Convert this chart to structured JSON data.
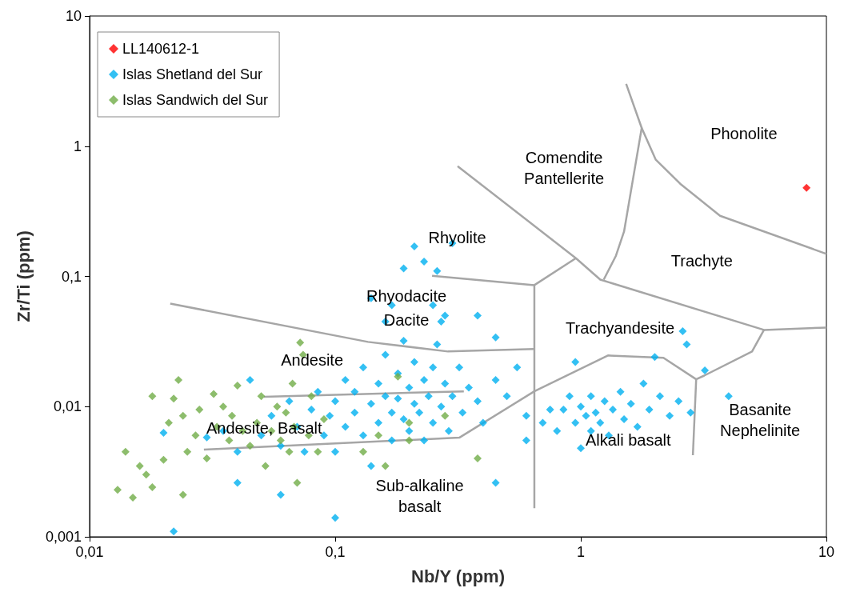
{
  "chart_data": {
    "type": "scatter",
    "xlabel": "Nb/Y (ppm)",
    "ylabel": "Zr/Ti (ppm)",
    "log": "xy",
    "grid": false,
    "legend": "top left",
    "marker": "diamond",
    "xlim": [
      0.01,
      10
    ],
    "xticks": [
      {
        "value": 0.01,
        "label": "0,01"
      },
      {
        "value": 0.1,
        "label": "0,1"
      },
      1,
      10
    ],
    "ylim": [
      0.001,
      10
    ],
    "yticks": [
      {
        "value": 0.001,
        "label": "0,001"
      },
      {
        "value": 0.01,
        "label": "0,01"
      },
      {
        "value": 0.1,
        "label": "0,1"
      },
      1,
      10
    ],
    "series": [
      {
        "type": "line",
        "color": "#a6a6a6",
        "marker": "none",
        "x": [
          0.0213,
          0.136,
          0.288,
          0.647
        ],
        "values": [
          0.0618,
          0.0314,
          0.0265,
          0.0277
        ]
      },
      {
        "type": "line",
        "color": "#a6a6a6",
        "marker": "none",
        "x": [
          0.0513,
          0.334
        ],
        "values": [
          0.0119,
          0.0131
        ]
      },
      {
        "type": "line",
        "color": "#a6a6a6",
        "marker": "none",
        "x": [
          0.0292,
          0.32,
          0.647,
          1.29,
          2.17,
          2.95
        ],
        "values": [
          0.00467,
          0.00577,
          0.0131,
          0.0247,
          0.0237,
          0.0162
        ]
      },
      {
        "type": "line",
        "color": "#a6a6a6",
        "marker": "none",
        "x": [
          0.647,
          0.647,
          0.955
        ],
        "values": [
          0.00166,
          0.0857,
          0.138
        ]
      },
      {
        "type": "line",
        "color": "#a6a6a6",
        "marker": "none",
        "x": [
          0.248,
          0.647
        ],
        "values": [
          0.101,
          0.0857
        ]
      },
      {
        "type": "line",
        "color": "#a6a6a6",
        "marker": "none",
        "x": [
          0.315,
          0.955,
          1.2,
          5.57,
          10
        ],
        "values": [
          0.703,
          0.138,
          0.0945,
          0.0388,
          0.0405
        ]
      },
      {
        "type": "line",
        "color": "#a6a6a6",
        "marker": "none",
        "x": [
          5.57,
          4.98,
          3.18,
          2.95,
          2.86
        ],
        "values": [
          0.0388,
          0.0265,
          0.0173,
          0.0162,
          0.00423
        ]
      },
      {
        "type": "line",
        "color": "#a6a6a6",
        "marker": "none",
        "x": [
          1.24,
          1.39,
          1.5,
          1.77,
          1.53
        ],
        "values": [
          0.0945,
          0.144,
          0.221,
          1.38,
          3.01
        ]
      },
      {
        "type": "line",
        "color": "#a6a6a6",
        "marker": "none",
        "x": [
          1.77,
          2.02,
          2.54,
          3.69,
          10
        ],
        "values": [
          1.38,
          0.787,
          0.515,
          0.292,
          0.149
        ]
      },
      {
        "name": "LL140612-1",
        "color": "#ff0000",
        "x": [
          8.3
        ],
        "values": [
          0.48
        ]
      },
      {
        "name": "Islas Shetland del Sur",
        "color": "#00b0f0",
        "x": [
          0.05,
          0.055,
          0.06,
          0.065,
          0.07,
          0.075,
          0.08,
          0.085,
          0.09,
          0.095,
          0.1,
          0.1,
          0.11,
          0.11,
          0.12,
          0.12,
          0.13,
          0.13,
          0.14,
          0.14,
          0.15,
          0.15,
          0.16,
          0.16,
          0.17,
          0.17,
          0.18,
          0.18,
          0.19,
          0.19,
          0.2,
          0.2,
          0.21,
          0.21,
          0.27,
          0.22,
          0.23,
          0.23,
          0.24,
          0.25,
          0.25,
          0.26,
          0.27,
          0.28,
          0.29,
          0.3,
          0.32,
          0.33,
          0.35,
          0.38,
          0.4,
          0.45,
          0.5,
          0.55,
          0.6,
          0.6,
          0.045,
          0.04,
          0.035,
          0.03,
          0.16,
          0.17,
          0.25,
          0.28,
          0.3,
          0.21,
          0.23,
          0.19,
          0.26,
          0.14,
          0.022,
          0.1,
          0.45,
          0.02,
          0.04,
          0.06,
          0.45,
          0.38,
          0.8,
          0.85,
          0.9,
          0.95,
          0.95,
          1.0,
          1.0,
          1.05,
          1.1,
          1.1,
          1.15,
          1.2,
          1.25,
          1.3,
          1.35,
          1.45,
          1.5,
          1.6,
          1.7,
          1.8,
          1.9,
          2.0,
          2.1,
          2.3,
          2.5,
          2.6,
          2.7,
          2.8,
          3.2,
          4.0,
          0.7,
          0.75
        ],
        "values": [
          0.006,
          0.0085,
          0.005,
          0.011,
          0.007,
          0.0045,
          0.0095,
          0.013,
          0.006,
          0.0085,
          0.011,
          0.0045,
          0.016,
          0.007,
          0.009,
          0.013,
          0.02,
          0.006,
          0.0105,
          0.0035,
          0.015,
          0.0075,
          0.025,
          0.012,
          0.009,
          0.0055,
          0.018,
          0.0115,
          0.032,
          0.008,
          0.014,
          0.0065,
          0.022,
          0.0105,
          0.045,
          0.009,
          0.016,
          0.0055,
          0.012,
          0.02,
          0.0075,
          0.03,
          0.01,
          0.015,
          0.0065,
          0.012,
          0.02,
          0.009,
          0.014,
          0.011,
          0.0075,
          0.016,
          0.012,
          0.02,
          0.0085,
          0.0055,
          0.016,
          0.0045,
          0.0065,
          0.0058,
          0.045,
          0.06,
          0.06,
          0.05,
          0.18,
          0.17,
          0.13,
          0.115,
          0.11,
          0.068,
          0.0011,
          0.0014,
          0.0026,
          0.0063,
          0.0026,
          0.0021,
          0.034,
          0.05,
          0.0065,
          0.0095,
          0.012,
          0.0075,
          0.022,
          0.0048,
          0.01,
          0.0085,
          0.012,
          0.0065,
          0.009,
          0.0075,
          0.011,
          0.006,
          0.0095,
          0.013,
          0.008,
          0.0105,
          0.007,
          0.015,
          0.0095,
          0.024,
          0.012,
          0.0085,
          0.011,
          0.038,
          0.03,
          0.009,
          0.019,
          0.012,
          0.0075,
          0.0095
        ]
      },
      {
        "name": "Islas Sandwich del Sur",
        "color": "#70ad47",
        "x": [
          0.013,
          0.015,
          0.014,
          0.016,
          0.017,
          0.018,
          0.018,
          0.02,
          0.021,
          0.022,
          0.023,
          0.024,
          0.024,
          0.025,
          0.027,
          0.028,
          0.03,
          0.032,
          0.033,
          0.035,
          0.037,
          0.038,
          0.04,
          0.042,
          0.045,
          0.048,
          0.05,
          0.052,
          0.055,
          0.058,
          0.06,
          0.063,
          0.065,
          0.067,
          0.068,
          0.07,
          0.072,
          0.074,
          0.078,
          0.08,
          0.085,
          0.09,
          0.13,
          0.16,
          0.18,
          0.2,
          0.28,
          0.38,
          0.2,
          0.15
        ],
        "values": [
          0.0023,
          0.002,
          0.0045,
          0.0035,
          0.003,
          0.0024,
          0.012,
          0.0039,
          0.0075,
          0.0115,
          0.016,
          0.0021,
          0.0085,
          0.0045,
          0.006,
          0.0095,
          0.004,
          0.0125,
          0.007,
          0.01,
          0.0055,
          0.0085,
          0.0145,
          0.0065,
          0.005,
          0.0075,
          0.012,
          0.0035,
          0.0065,
          0.01,
          0.0055,
          0.009,
          0.0045,
          0.015,
          0.007,
          0.0026,
          0.031,
          0.025,
          0.006,
          0.012,
          0.0045,
          0.008,
          0.0045,
          0.0035,
          0.017,
          0.0055,
          0.0085,
          0.004,
          0.0075,
          0.006
        ]
      }
    ],
    "annotations": [
      "Phonolite",
      "Comendite\nPantellerite",
      "Trachyte",
      "Rhyolite",
      "Rhyodacite",
      "Dacite",
      "Trachyandesite",
      "Andesite",
      "Andesite, Basalt",
      "Alkali basalt",
      "Basanite\nNephelinite",
      "Sub-alkaline\nbasalt"
    ]
  }
}
